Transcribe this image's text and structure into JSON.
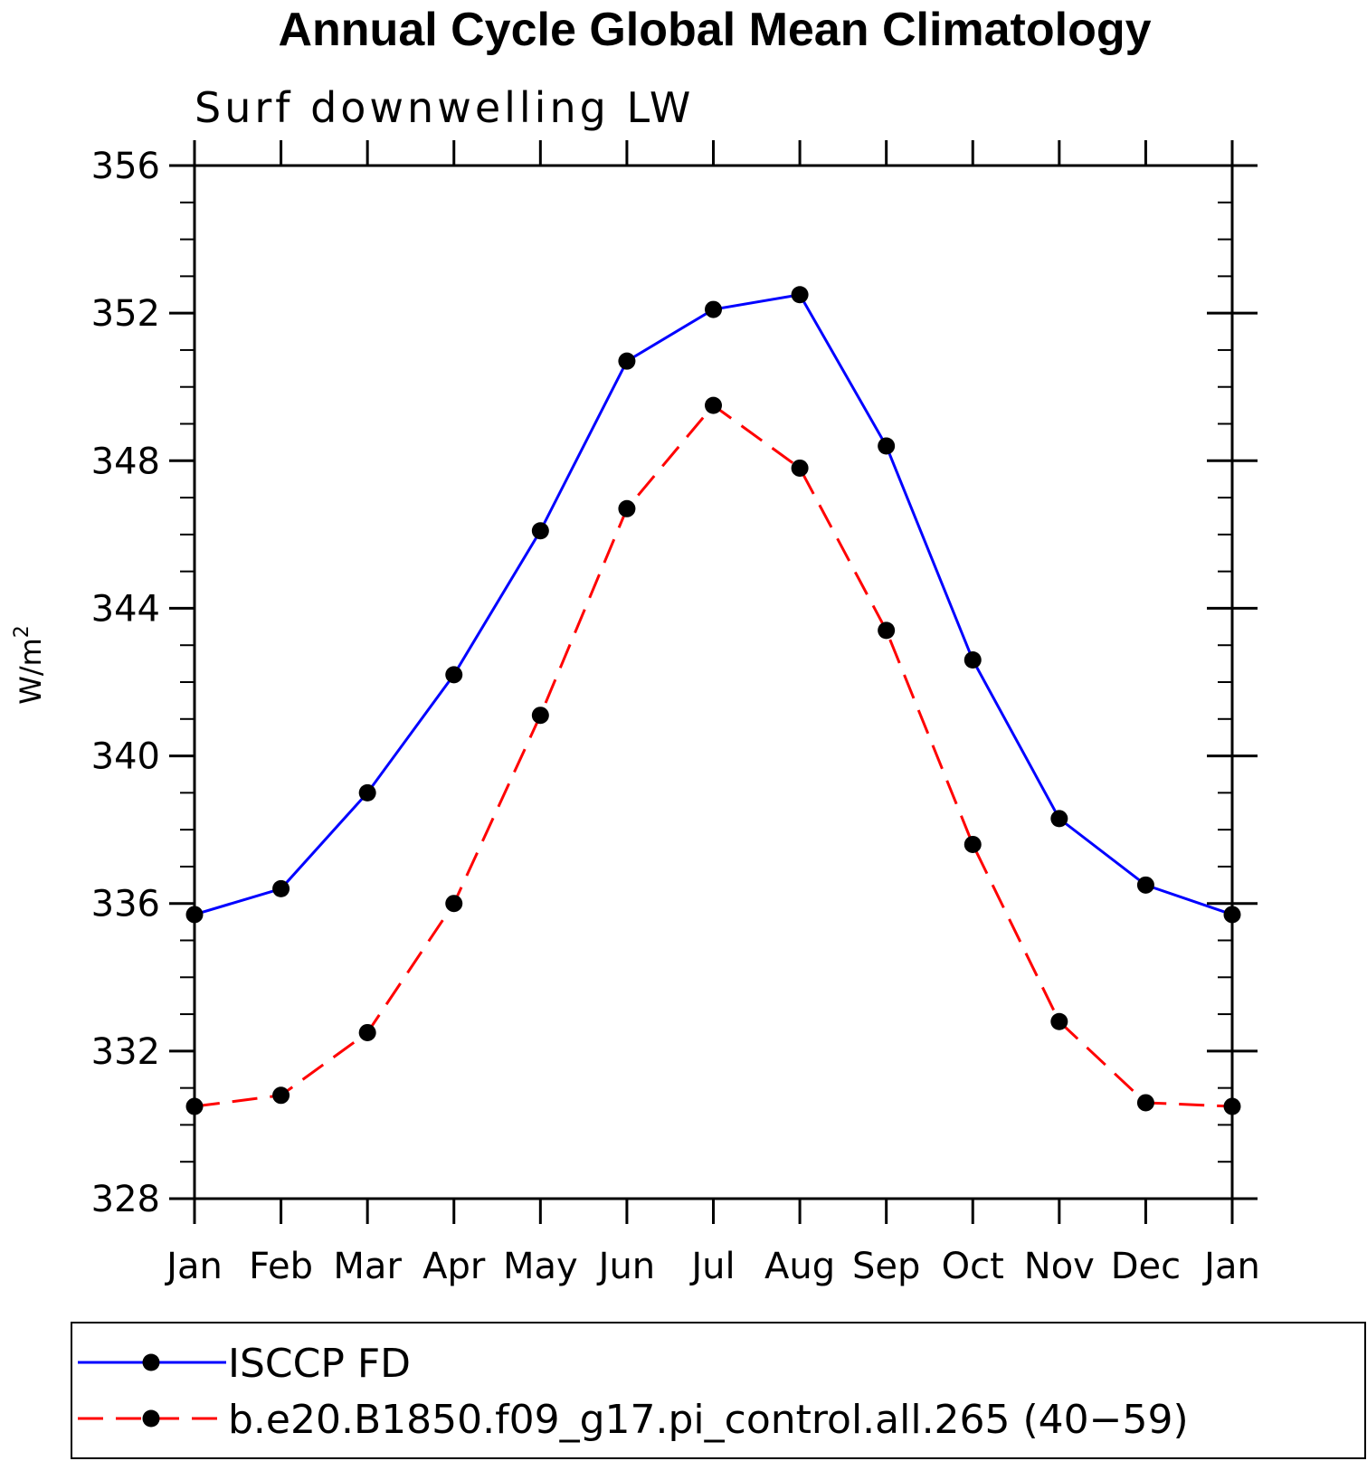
{
  "chart_data": {
    "type": "line",
    "title": "Annual Cycle Global Mean Climatology",
    "subtitle": "Surf downwelling LW",
    "ylabel": "W/m",
    "ylabel_superscript": "2",
    "xlabel": "",
    "categories": [
      "Jan",
      "Feb",
      "Mar",
      "Apr",
      "May",
      "Jun",
      "Jul",
      "Aug",
      "Sep",
      "Oct",
      "Nov",
      "Dec",
      "Jan"
    ],
    "ylim": [
      328,
      356
    ],
    "yticks": [
      328,
      332,
      336,
      340,
      344,
      348,
      352,
      356
    ],
    "yminor_step": 1,
    "series": [
      {
        "name": "ISCCP FD",
        "color": "#0000ff",
        "dash": "solid",
        "marker": "filled-circle",
        "values": [
          335.7,
          336.4,
          339.0,
          342.2,
          346.1,
          350.7,
          352.1,
          352.5,
          348.4,
          342.6,
          338.3,
          336.5,
          335.7
        ]
      },
      {
        "name": "b.e20.B1850.f09_g17.pi_control.all.265 (40−59)",
        "color": "#ff0000",
        "dash": "dashed",
        "marker": "filled-circle",
        "values": [
          330.5,
          330.8,
          332.5,
          336.0,
          341.1,
          346.7,
          349.5,
          347.8,
          343.4,
          337.6,
          332.8,
          330.6,
          330.5
        ]
      }
    ],
    "legend_position": "bottom",
    "grid": false
  }
}
